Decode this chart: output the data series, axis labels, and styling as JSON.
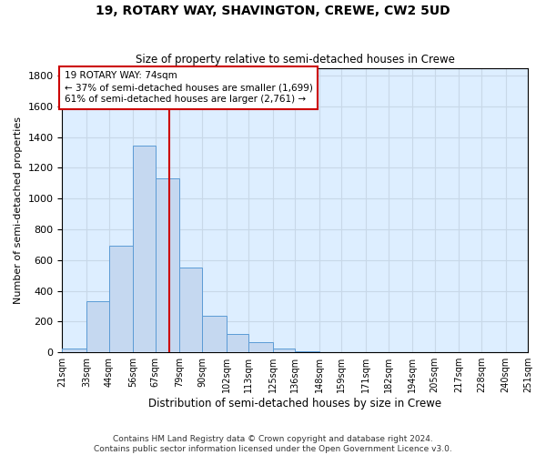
{
  "title": "19, ROTARY WAY, SHAVINGTON, CREWE, CW2 5UD",
  "subtitle": "Size of property relative to semi-detached houses in Crewe",
  "xlabel": "Distribution of semi-detached houses by size in Crewe",
  "ylabel": "Number of semi-detached properties",
  "bin_labels": [
    "21sqm",
    "33sqm",
    "44sqm",
    "56sqm",
    "67sqm",
    "79sqm",
    "90sqm",
    "102sqm",
    "113sqm",
    "125sqm",
    "136sqm",
    "148sqm",
    "159sqm",
    "171sqm",
    "182sqm",
    "194sqm",
    "205sqm",
    "217sqm",
    "228sqm",
    "240sqm",
    "251sqm"
  ],
  "bin_edges": [
    21,
    33,
    44,
    56,
    67,
    79,
    90,
    102,
    113,
    125,
    136,
    148,
    159,
    171,
    182,
    194,
    205,
    217,
    228,
    240,
    251
  ],
  "bar_heights": [
    25,
    330,
    695,
    1345,
    1130,
    550,
    240,
    120,
    65,
    25,
    10,
    0,
    0,
    0,
    0,
    0,
    0,
    0,
    0,
    0
  ],
  "bar_color": "#c5d8f0",
  "bar_edge_color": "#5b9bd5",
  "grid_color": "#c8d8e8",
  "background_color": "#ddeeff",
  "vline_x": 74,
  "vline_color": "#cc0000",
  "annotation_title": "19 ROTARY WAY: 74sqm",
  "annotation_line1": "← 37% of semi-detached houses are smaller (1,699)",
  "annotation_line2": "61% of semi-detached houses are larger (2,761) →",
  "annotation_box_color": "#ffffff",
  "annotation_box_edge": "#cc0000",
  "ylim": [
    0,
    1850
  ],
  "yticks": [
    0,
    200,
    400,
    600,
    800,
    1000,
    1200,
    1400,
    1600,
    1800
  ],
  "footer_line1": "Contains HM Land Registry data © Crown copyright and database right 2024.",
  "footer_line2": "Contains public sector information licensed under the Open Government Licence v3.0."
}
